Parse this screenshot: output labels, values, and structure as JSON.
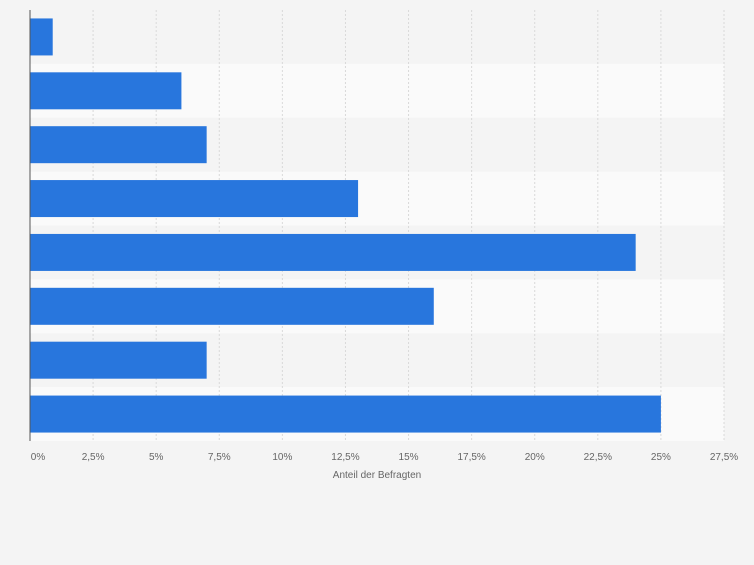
{
  "chart_data": {
    "type": "bar",
    "orientation": "horizontal",
    "categories": [
      "",
      "",
      "",
      "",
      "",
      "",
      "",
      ""
    ],
    "values": [
      0.9,
      6,
      7,
      13,
      24,
      16,
      7,
      25
    ],
    "xlabel": "Anteil der Befragten",
    "xlim": [
      0,
      27.5
    ],
    "ticks": [
      0,
      2.5,
      5,
      7.5,
      10,
      12.5,
      15,
      17.5,
      20,
      22.5,
      25,
      27.5
    ],
    "tick_labels": [
      "0%",
      "2,5%",
      "5%",
      "7,5%",
      "10%",
      "12,5%",
      "15%",
      "17,5%",
      "20%",
      "22,5%",
      "25%",
      "27,5%"
    ],
    "grid": true,
    "bar_color": "#2876dd",
    "band_color": "#fafafa"
  }
}
